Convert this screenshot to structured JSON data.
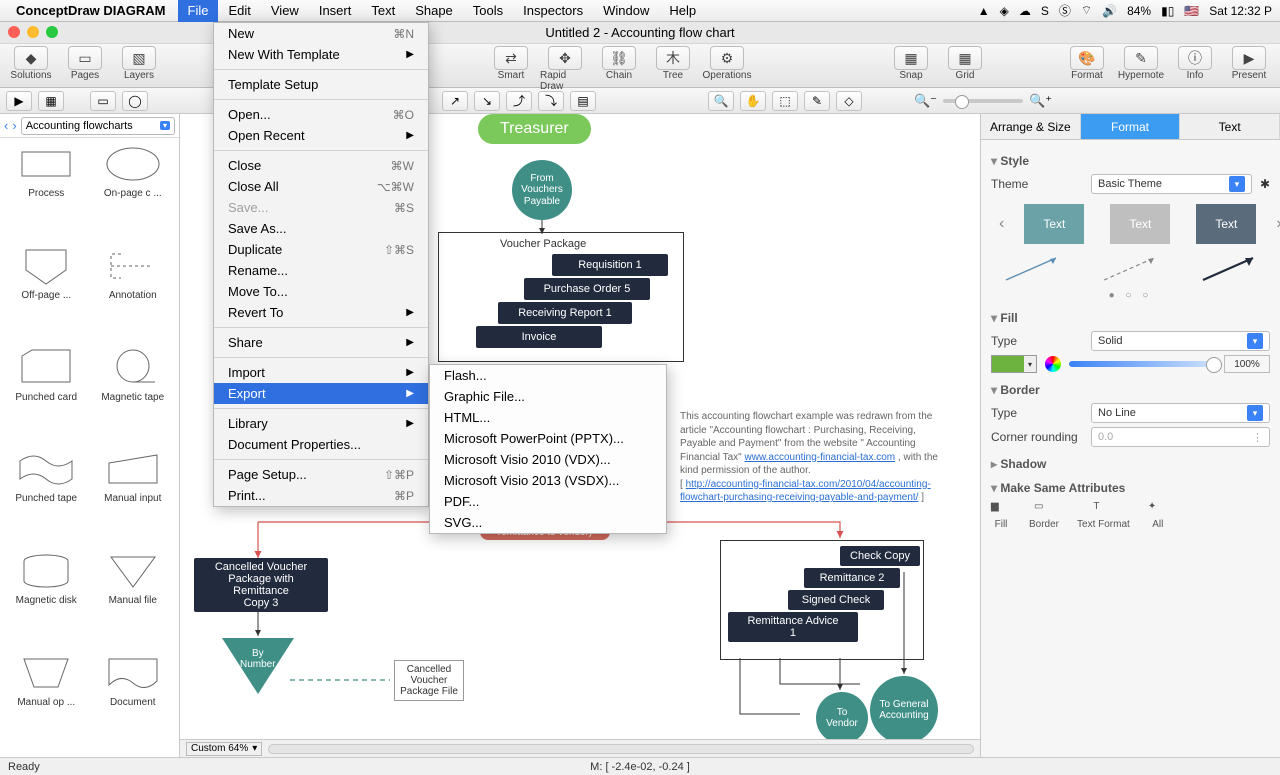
{
  "menubar": {
    "app": "ConceptDraw DIAGRAM",
    "items": [
      "File",
      "Edit",
      "View",
      "Insert",
      "Text",
      "Shape",
      "Tools",
      "Inspectors",
      "Window",
      "Help"
    ],
    "open_index": 0,
    "battery": "84%",
    "clock": "Sat 12:32 P"
  },
  "window": {
    "title": "Untitled 2 - Accounting flow chart"
  },
  "toolbar": {
    "left": [
      {
        "label": "Solutions",
        "glyph": "◆"
      },
      {
        "label": "Pages",
        "glyph": "▭"
      },
      {
        "label": "Layers",
        "glyph": "▧"
      }
    ],
    "mid": [
      {
        "label": "Smart",
        "glyph": "⇄"
      },
      {
        "label": "Rapid Draw",
        "glyph": "✥"
      },
      {
        "label": "Chain",
        "glyph": "⛓"
      },
      {
        "label": "Tree",
        "glyph": "⽊"
      },
      {
        "label": "Operations",
        "glyph": "⚙"
      }
    ],
    "snapgrid": [
      {
        "label": "Snap",
        "glyph": "▦"
      },
      {
        "label": "Grid",
        "glyph": "▦"
      }
    ],
    "right": [
      {
        "label": "Format",
        "glyph": "🎨"
      },
      {
        "label": "Hypernote",
        "glyph": "✎"
      },
      {
        "label": "Info",
        "glyph": "ⓘ"
      },
      {
        "label": "Present",
        "glyph": "▶"
      }
    ]
  },
  "library": {
    "selector": "Accounting flowcharts",
    "shapes": [
      {
        "label": "Process",
        "kind": "rect"
      },
      {
        "label": "On-page c ...",
        "kind": "ellipse"
      },
      {
        "label": "Off-page  ...",
        "kind": "offpage"
      },
      {
        "label": "Annotation",
        "kind": "annot"
      },
      {
        "label": "Punched card",
        "kind": "punchcard"
      },
      {
        "label": "Magnetic tape",
        "kind": "magtape"
      },
      {
        "label": "Punched tape",
        "kind": "punchtape"
      },
      {
        "label": "Manual input",
        "kind": "manin"
      },
      {
        "label": "Magnetic disk",
        "kind": "disk"
      },
      {
        "label": "Manual file",
        "kind": "manfile"
      },
      {
        "label": "Manual op ...",
        "kind": "manop"
      },
      {
        "label": "Document",
        "kind": "doc"
      }
    ]
  },
  "file_menu": [
    {
      "t": "New",
      "sc": "⌘N"
    },
    {
      "t": "New With Template",
      "arr": true
    },
    "-",
    {
      "t": "Template Setup"
    },
    "-",
    {
      "t": "Open...",
      "sc": "⌘O"
    },
    {
      "t": "Open Recent",
      "arr": true
    },
    "-",
    {
      "t": "Close",
      "sc": "⌘W"
    },
    {
      "t": "Close All",
      "sc": "⌥⌘W"
    },
    {
      "t": "Save...",
      "sc": "⌘S",
      "disabled": true
    },
    {
      "t": "Save As..."
    },
    {
      "t": "Duplicate",
      "sc": "⇧⌘S"
    },
    {
      "t": "Rename..."
    },
    {
      "t": "Move To..."
    },
    {
      "t": "Revert To",
      "arr": true
    },
    "-",
    {
      "t": "Share",
      "arr": true
    },
    "-",
    {
      "t": "Import",
      "arr": true
    },
    {
      "t": "Export",
      "arr": true,
      "hl": true
    },
    "-",
    {
      "t": "Library",
      "arr": true
    },
    {
      "t": "Document Properties..."
    },
    "-",
    {
      "t": "Page Setup...",
      "sc": "⇧⌘P"
    },
    {
      "t": "Print...",
      "sc": "⌘P"
    }
  ],
  "export_menu": [
    "Flash...",
    "Graphic File...",
    "HTML...",
    "Microsoft PowerPoint (PPTX)...",
    "Microsoft Visio 2010 (VDX)...",
    "Microsoft Visio 2013 (VSDX)...",
    "PDF...",
    "SVG..."
  ],
  "right_panel": {
    "tabs": [
      "Arrange & Size",
      "Format",
      "Text"
    ],
    "active": 1,
    "theme": "Basic Theme",
    "swatches": [
      {
        "txt": "Text",
        "bg": "#6aa2a8"
      },
      {
        "txt": "Text",
        "bg": "#bfbfbf"
      },
      {
        "txt": "Text",
        "bg": "#5a6b7b"
      }
    ],
    "fill_type": "Solid",
    "fill_color": "#6db33f",
    "opacity": "100%",
    "border": "No Line",
    "corner": "0.0",
    "attrs": [
      "Fill",
      "Border",
      "Text Format",
      "All"
    ]
  },
  "flow": {
    "treasurer": "Treasurer",
    "from_vouchers": "From\nVouchers\nPayable",
    "vp": "Voucher Package",
    "req": "Requisition 1",
    "po": "Purchase Order 5",
    "rr": "Receiving Report 1",
    "inv": "Invoice",
    "cancel": "Cancelled Voucher\nPackage with Remittance\nCopy 3",
    "bynum": "By\nNumber",
    "cvf": "Cancelled\nVoucher\nPackage File",
    "red": "turning it into a\nremittance to vendor)",
    "chk": "Check Copy",
    "rem2": "Remittance 2",
    "sc": "Signed Check",
    "ra1": "Remittance Advice\n1",
    "tovendor": "To\nVendor",
    "toga": "To General\nAccounting",
    "desc": "This accounting flowchart example was redrawn from the article \"Accounting flowchart : Purchasing, Receiving, Payable and Payment\" from the website \" Accounting Financial Tax\" ",
    "link1": "www.accounting-financial-tax.com",
    "desc2": " , with the kind permission of the author.",
    "desc3": "[ ",
    "link2": "http://accounting-financial-tax.com/2010/04/accounting-flowchart-purchasing-receiving-payable-and-payment/",
    "desc4": " ]"
  },
  "canvas": {
    "zoom": "Custom 64%"
  },
  "status": {
    "ready": "Ready",
    "coords": "M: [ -2.4e-02, -0.24 ]"
  }
}
